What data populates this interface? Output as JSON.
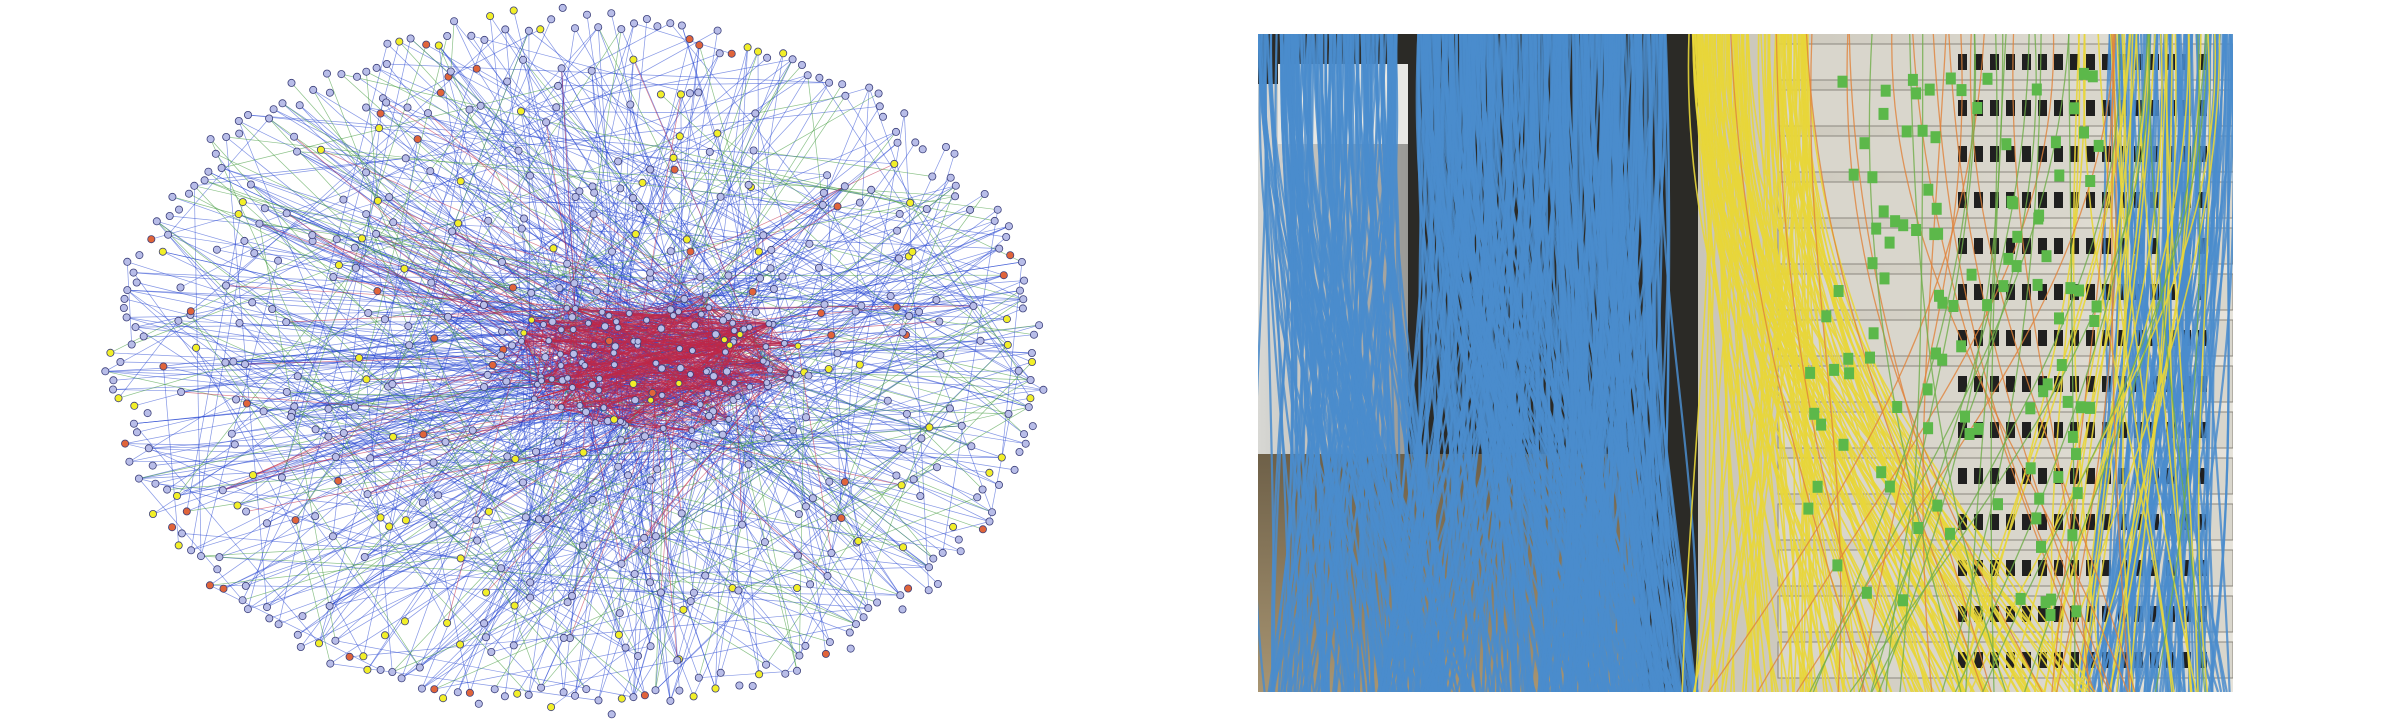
{
  "figure": {
    "left_panel": {
      "name": "network-graph-visualization",
      "node_colors": {
        "default": "#b8bde8",
        "yellow": "#f2ef28",
        "orange": "#e0643a",
        "node_stroke": "#3b3f7a"
      },
      "edge_colors": {
        "primary": "#1f3fd0",
        "core": "#c02848",
        "peripheral": "#3f9a3a"
      }
    },
    "right_panel": {
      "name": "server-rack-cabling-photo",
      "colors": {
        "blue_cables": "#4a8ccc",
        "yellow_cables": "#e8d63a",
        "green_connectors": "#5cb84a",
        "rack_panel": "#d9d6cc",
        "floor": "#9c8b6a",
        "shadow": "#1a1a1a"
      }
    }
  }
}
